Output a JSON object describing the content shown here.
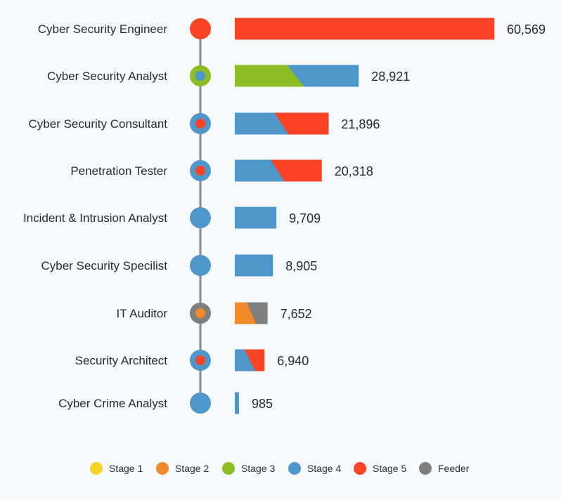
{
  "chart_data": {
    "type": "bar",
    "title": "",
    "xlabel": "",
    "ylabel": "",
    "xlim": [
      0,
      60569
    ],
    "grid": false,
    "legend_position": "bottom",
    "stage_colors": {
      "Stage 1": "#f5d426",
      "Stage 2": "#f28a2b",
      "Stage 3": "#8dbd24",
      "Stage 4": "#4f97ca",
      "Stage 5": "#fd4325",
      "Feeder": "#7f7f7f"
    },
    "legend": [
      "Stage 1",
      "Stage 2",
      "Stage 3",
      "Stage 4",
      "Stage 5",
      "Feeder"
    ],
    "categories": [
      "Cyber Security Engineer",
      "Cyber Security Analyst",
      "Cyber Security Consultant",
      "Penetration Tester",
      "Incident & Intrusion Analyst",
      "Cyber Security Specilist",
      "IT Auditor",
      "Security Architect",
      "Cyber Crime Analyst"
    ],
    "values": [
      60569,
      28921,
      21896,
      20318,
      9709,
      8905,
      7652,
      6940,
      985
    ],
    "value_labels": [
      "60,569",
      "28,921",
      "21,896",
      "20,318",
      "9,709",
      "8,905",
      "7,652",
      "6,940",
      "985"
    ],
    "bar_stages": [
      [
        "Stage 5"
      ],
      [
        "Stage 3",
        "Stage 4"
      ],
      [
        "Stage 4",
        "Stage 5"
      ],
      [
        "Stage 4",
        "Stage 5"
      ],
      [
        "Stage 4"
      ],
      [
        "Stage 4"
      ],
      [
        "Stage 2",
        "Feeder"
      ],
      [
        "Stage 4",
        "Stage 5"
      ],
      [
        "Stage 4"
      ]
    ],
    "node_stages": [
      {
        "outer": "Stage 5",
        "inner": "Stage 5"
      },
      {
        "outer": "Stage 3",
        "inner": "Stage 4"
      },
      {
        "outer": "Stage 4",
        "inner": "Stage 5"
      },
      {
        "outer": "Stage 4",
        "inner": "Stage 5"
      },
      {
        "outer": "Stage 4",
        "inner": "Stage 4"
      },
      {
        "outer": "Stage 4",
        "inner": "Stage 4"
      },
      {
        "outer": "Feeder",
        "inner": "Stage 2"
      },
      {
        "outer": "Stage 4",
        "inner": "Stage 5"
      },
      {
        "outer": "Stage 4",
        "inner": "Stage 4"
      }
    ]
  }
}
